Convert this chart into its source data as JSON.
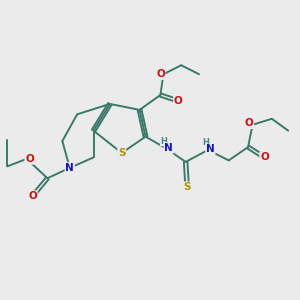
{
  "bg_color": "#ebebeb",
  "bond_color": "#3a7a6a",
  "bw": 1.4,
  "fs": 7.5,
  "colors": {
    "S": "#b89000",
    "N": "#1010cc",
    "O": "#cc1010",
    "H": "#4a8888"
  },
  "figsize": [
    3.0,
    3.0
  ],
  "dpi": 100
}
